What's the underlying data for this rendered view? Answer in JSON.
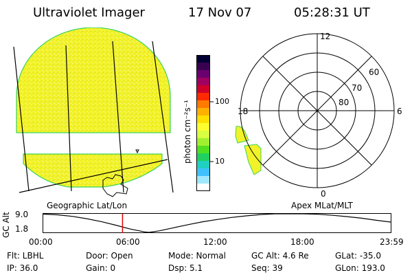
{
  "header": {
    "instrument": "Ultraviolet Imager",
    "date": "17 Nov 07",
    "time": "05:28:31 UT"
  },
  "colorbar": {
    "unit_label": "photon cm⁻²s⁻¹",
    "scale": "log",
    "ticks": [
      "100",
      "10"
    ],
    "colors": [
      "#000033",
      "#3a0050",
      "#6a0070",
      "#a00060",
      "#d0002a",
      "#ff2a00",
      "#ff7a00",
      "#ffb000",
      "#ffe000",
      "#ffff30",
      "#d8ff40",
      "#a0f030",
      "#50e020",
      "#20d060",
      "#20d0c0",
      "#40c0ff",
      "#a0e8ff",
      "#ffffff"
    ]
  },
  "geo_panel": {
    "label": "Geographic Lat/Lon",
    "fill_color": "#f2f22a",
    "edge_color": "#3ad25a"
  },
  "polar_panel": {
    "label": "Apex MLat/MLT",
    "mlt_labels": {
      "top": "12",
      "right": "6",
      "bottom": "0",
      "left": "18"
    },
    "lat_labels": [
      "60",
      "70",
      "80"
    ]
  },
  "timeline": {
    "ylabel": "GC Alt",
    "y_ticks": [
      "9.0",
      "1.8"
    ],
    "x_ticks": [
      "00:00",
      "06:00",
      "12:00",
      "18:00",
      "23:59"
    ],
    "marker_color": "#e00000"
  },
  "chart_data": {
    "type": "line",
    "title": "",
    "xlabel": "",
    "ylabel": "GC Alt",
    "xlim": [
      0,
      24
    ],
    "ylim": [
      1.8,
      9.0
    ],
    "x": [
      0,
      1,
      2,
      3,
      4,
      5,
      6,
      7,
      7.3,
      8,
      9,
      10,
      11,
      12,
      13,
      14,
      15,
      16,
      17,
      18,
      19,
      20,
      21,
      22,
      23,
      24
    ],
    "series": [
      {
        "values": [
          8.9,
          8.6,
          8.0,
          7.1,
          6.0,
          4.6,
          3.1,
          2.0,
          1.8,
          2.4,
          3.6,
          4.8,
          5.9,
          6.8,
          7.6,
          8.2,
          8.7,
          9.0,
          9.1,
          9.0,
          8.8,
          8.4,
          7.9,
          7.3,
          6.5,
          5.8
        ]
      }
    ],
    "marker_x": 5.475
  },
  "footer": {
    "filter": "Flt: LBHL",
    "ip": "IP: 36.0",
    "door": "Door:  Open",
    "gain": "Gain:     0",
    "mode": "Mode:  Normal",
    "dsp": "Dsp:        5.1",
    "gc_alt": "GC Alt:  4.6 Re",
    "seq": "Seq:  39",
    "glat": "GLat:  -35.0",
    "glon": "GLon:  193.0"
  }
}
